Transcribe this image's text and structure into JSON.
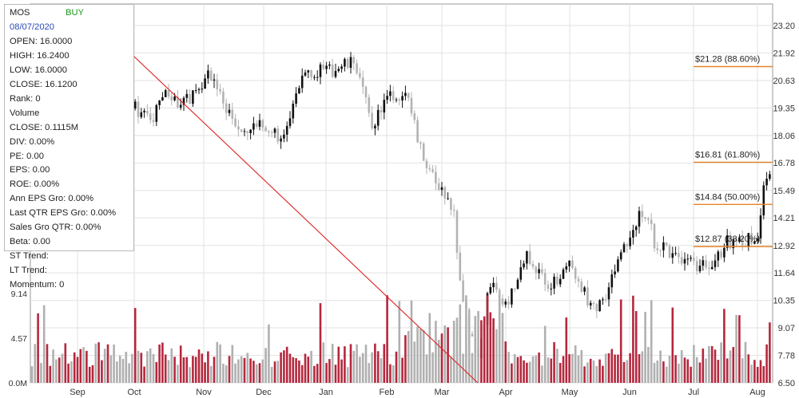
{
  "colors": {
    "up_candle": "#111111",
    "down_candle": "#b3b3b3",
    "volume_up": "#b5273d",
    "volume_down": "#b0b0b0",
    "fib_line": "#e7822a",
    "trend_line": "#e02020",
    "grid": "#e2e2e2",
    "signal": "#1a9a1a",
    "date": "#2a49b8"
  },
  "info": {
    "symbol": "MOS",
    "signal": "BUY",
    "date": "08/07/2020",
    "rows": [
      "OPEN: 16.0000",
      "HIGH: 16.2400",
      "LOW: 16.0000",
      "CLOSE: 16.1200",
      "Rank: 0",
      "Volume",
      "CLOSE: 0.1115M",
      "DIV: 0.00%",
      "PE: 0.00",
      "EPS: 0.00",
      "ROE: 0.00%",
      "Ann EPS Gro: 0.00%",
      "Last QTR EPS Gro: 0.00%",
      "Sales Gro QTR: 0.00%",
      "Beta: 0.00",
      "ST Trend:",
      "LT Trend:",
      "Momentum: 0"
    ]
  },
  "chart_data": {
    "type": "candlestick",
    "symbol": "MOS",
    "x_tick_labels": [
      "Sep",
      "Oct",
      "Nov",
      "Dec",
      "Jan",
      "Feb",
      "Mar",
      "Apr",
      "May",
      "Jun",
      "Jul",
      "Aug"
    ],
    "price_axis": {
      "side": "right",
      "ticks": [
        "23.20",
        "21.92",
        "20.63",
        "19.35",
        "18.06",
        "16.78",
        "15.49",
        "14.21",
        "12.92",
        "11.64",
        "10.35",
        "9.07",
        "7.78",
        "6.50"
      ],
      "range": [
        6.5,
        23.2
      ]
    },
    "volume_axis": {
      "side": "left",
      "ticks": [
        "9.14",
        "4.57",
        "0.0M"
      ],
      "range": [
        0,
        9.14
      ]
    },
    "fibonacci_levels": [
      {
        "label": "$21.28 (88.60%)",
        "value": 21.28
      },
      {
        "label": "$16.81 (61.80%)",
        "value": 16.81
      },
      {
        "label": "$14.84 (50.00%)",
        "value": 14.84
      },
      {
        "label": "$12.87 (38.20%)",
        "value": 12.87
      }
    ],
    "trend_line": {
      "from": {
        "month": "Sep",
        "price": 23.2
      },
      "to": {
        "month": "Mar",
        "price": 6.5
      }
    },
    "monthly_closes": {
      "Sep": 20.8,
      "Oct": 19.3,
      "Nov": 20.6,
      "Dec": 18.5,
      "Jan": 21.2,
      "Feb": 19.6,
      "Mar": 11.2,
      "Apr": 11.9,
      "May": 10.5,
      "Jun": 12.4,
      "Jul": 13.1,
      "Aug": 16.12
    },
    "last_bar": {
      "open": 16.0,
      "high": 16.24,
      "low": 16.0,
      "close": 16.12,
      "volume": "0.1115M"
    }
  }
}
